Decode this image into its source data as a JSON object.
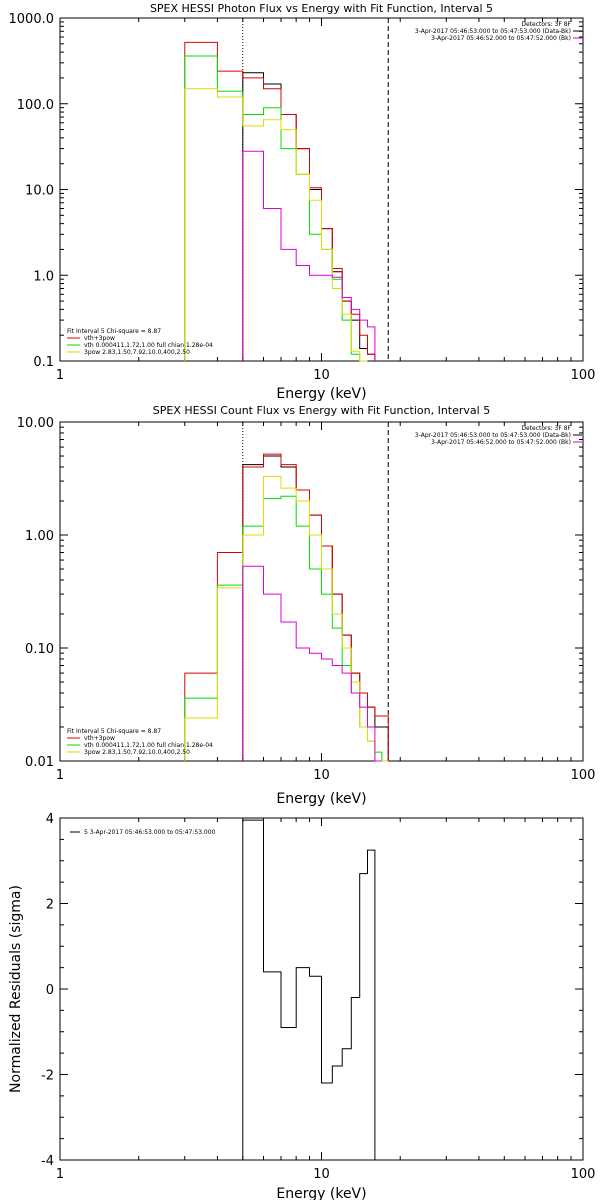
{
  "chart_data": [
    {
      "type": "line",
      "title": "SPEX HESSI Photon Flux vs Energy with Fit Function, Interval 5",
      "xlabel": "Energy (keV)",
      "ylabel": "",
      "xscale": "log",
      "yscale": "log",
      "xlim": [
        1,
        100
      ],
      "ylim": [
        0.1,
        1000
      ],
      "xticks": [
        "1",
        "10",
        "100"
      ],
      "yticks": [
        "0.1",
        "1.0",
        "10.0",
        "100.0",
        "1000.0"
      ],
      "legend_right": [
        "Detectors: 3F 8F",
        "3-Apr-2017 05:46:53.000 to 05:47:53.000 (Data-Bk)",
        "3-Apr-2017 05:46:52.000 to 05:47:52.000 (Bk)"
      ],
      "legend_left": [
        "Fit Interval  5   Chi-square = 8.87",
        "vth+3pow",
        "vth 0.000411,1.72,1.00  full chian 1.28e-04",
        "3pow  2.83,1.50,7.92,10.0,400,2.50"
      ],
      "dotted_line_x": 5.0,
      "dashed_line_x": 18.0,
      "bin_edges": [
        3,
        4,
        5,
        6,
        7,
        8,
        9,
        10,
        11,
        12,
        13,
        14,
        15,
        16,
        17,
        18
      ],
      "series": [
        {
          "color": "#000000",
          "values": [
            null,
            null,
            230,
            170,
            75,
            30,
            10,
            3.5,
            1.1,
            0.5,
            0.3,
            0.14,
            0.12,
            null,
            null
          ]
        },
        {
          "color": "#dd0000",
          "values": [
            520,
            240,
            200,
            150,
            75,
            30,
            10.5,
            3.5,
            1.2,
            0.5,
            0.35,
            0.2,
            0.12,
            null,
            null
          ]
        },
        {
          "color": "#00dd00",
          "values": [
            360,
            140,
            75,
            90,
            30,
            15,
            3.0,
            2.0,
            0.9,
            0.3,
            0.12,
            0.1,
            null,
            null,
            null
          ]
        },
        {
          "color": "#dddd00",
          "values": [
            150,
            120,
            55,
            65,
            50,
            15,
            7.5,
            2.0,
            0.7,
            0.35,
            0.13,
            0.1,
            null,
            null,
            null
          ]
        },
        {
          "color": "#dd00dd",
          "values": [
            null,
            null,
            28,
            6,
            2.0,
            1.3,
            1.0,
            1.0,
            0.95,
            0.55,
            0.4,
            0.3,
            0.25,
            null,
            null
          ]
        }
      ]
    },
    {
      "type": "line",
      "title": "SPEX HESSI Count Flux vs Energy with Fit Function, Interval 5",
      "xlabel": "Energy (keV)",
      "ylabel": "",
      "xscale": "log",
      "yscale": "log",
      "xlim": [
        1,
        100
      ],
      "ylim": [
        0.01,
        10
      ],
      "xticks": [
        "1",
        "10",
        "100"
      ],
      "yticks": [
        "0.01",
        "0.10",
        "1.00",
        "10.00"
      ],
      "legend_right": [
        "Detectors: 3F 8F",
        "3-Apr-2017 05:46:53.000 to 05:47:53.000 (Data-Bk)",
        "3-Apr-2017 05:46:52.000 to 05:47:52.000 (Bk)"
      ],
      "legend_left": [
        "Fit Interval  5   Chi-square = 8.87",
        "vth+3pow",
        "vth 0.000411,1.72,1.00  full chian 1.28e-04",
        "3pow  2.83,1.50,7.92,10.0,400,2.50"
      ],
      "dotted_line_x": 5.0,
      "dashed_line_x": 18.0,
      "bin_edges": [
        3,
        4,
        5,
        6,
        7,
        8,
        9,
        10,
        11,
        12,
        13,
        14,
        15,
        16,
        17,
        18
      ],
      "series": [
        {
          "color": "#000000",
          "values": [
            null,
            null,
            4.2,
            5.0,
            4.0,
            2.5,
            1.5,
            0.8,
            0.3,
            0.13,
            0.06,
            0.04,
            0.03,
            0.02,
            0.02
          ]
        },
        {
          "color": "#dd0000",
          "values": [
            0.06,
            0.7,
            4.0,
            5.2,
            4.2,
            2.5,
            1.5,
            0.8,
            0.3,
            0.13,
            0.06,
            0.04,
            0.03,
            0.025,
            0.025
          ]
        },
        {
          "color": "#00dd00",
          "values": [
            0.036,
            0.36,
            1.2,
            2.1,
            2.2,
            1.2,
            0.5,
            0.3,
            0.15,
            0.07,
            0.04,
            0.02,
            0.015,
            0.012,
            0.01
          ]
        },
        {
          "color": "#dddd00",
          "values": [
            0.024,
            0.34,
            1.0,
            3.3,
            2.6,
            2.0,
            1.0,
            0.5,
            0.2,
            0.1,
            0.05,
            0.02,
            0.015,
            0.01,
            0.01
          ]
        },
        {
          "color": "#dd00dd",
          "values": [
            null,
            null,
            0.53,
            0.3,
            0.17,
            0.1,
            0.09,
            0.08,
            0.07,
            0.06,
            0.04,
            0.03,
            0.02,
            0.01,
            null
          ]
        }
      ]
    },
    {
      "type": "line",
      "title": "",
      "xlabel": "Energy (keV)",
      "ylabel": "Normalized Residuals (sigma)",
      "xscale": "log",
      "yscale": "linear",
      "xlim": [
        1,
        100
      ],
      "ylim": [
        -4,
        4
      ],
      "xticks": [
        "1",
        "10",
        "100"
      ],
      "yticks": [
        "-4",
        "-2",
        "0",
        "2",
        "4"
      ],
      "legend": "5  3-Apr-2017 05:46:53.000 to 05:47:53.000",
      "bin_edges": [
        5,
        6,
        7,
        8,
        9,
        10,
        11,
        12,
        13,
        14,
        15,
        16,
        17,
        18
      ],
      "series": [
        {
          "color": "#000000",
          "values": [
            3.95,
            0.4,
            -0.9,
            0.5,
            0.3,
            -2.2,
            -1.8,
            -1.4,
            -0.2,
            2.7,
            3.25,
            null,
            null
          ]
        }
      ]
    }
  ]
}
